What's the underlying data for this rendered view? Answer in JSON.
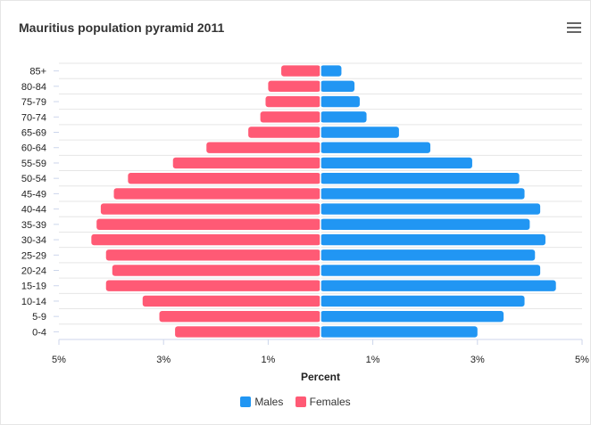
{
  "chart_data": {
    "type": "bar",
    "orientation": "horizontal-pyramid",
    "title": "Mauritius population pyramid 2011",
    "xlabel": "Percent",
    "ylabel": "",
    "xlim": [
      -5,
      5
    ],
    "xticks": [
      -5,
      -3,
      -1,
      1,
      3,
      5
    ],
    "xtick_labels": [
      "5%",
      "3%",
      "1%",
      "1%",
      "3%",
      "5%"
    ],
    "categories": [
      "85+",
      "80-84",
      "75-79",
      "70-74",
      "65-69",
      "60-64",
      "55-59",
      "50-54",
      "45-49",
      "40-44",
      "35-39",
      "30-34",
      "25-29",
      "20-24",
      "15-19",
      "10-14",
      "5-9",
      "0-4"
    ],
    "series": [
      {
        "name": "Males",
        "color": "#2196f3",
        "values": [
          0.4,
          0.65,
          0.75,
          0.88,
          1.5,
          2.1,
          2.9,
          3.8,
          3.9,
          4.2,
          4.0,
          4.3,
          4.1,
          4.2,
          4.5,
          3.9,
          3.5,
          3.0
        ]
      },
      {
        "name": "Females",
        "color": "#ff5a75",
        "values": [
          -0.75,
          -1.0,
          -1.05,
          -1.15,
          -1.38,
          -2.18,
          -2.82,
          -3.68,
          -3.95,
          -4.2,
          -4.28,
          -4.38,
          -4.1,
          -3.98,
          -4.1,
          -3.4,
          -3.08,
          -2.78
        ]
      }
    ]
  },
  "header": {
    "menu_icon": "hamburger-menu-icon"
  },
  "legend": {
    "males_label": "Males",
    "females_label": "Females"
  }
}
